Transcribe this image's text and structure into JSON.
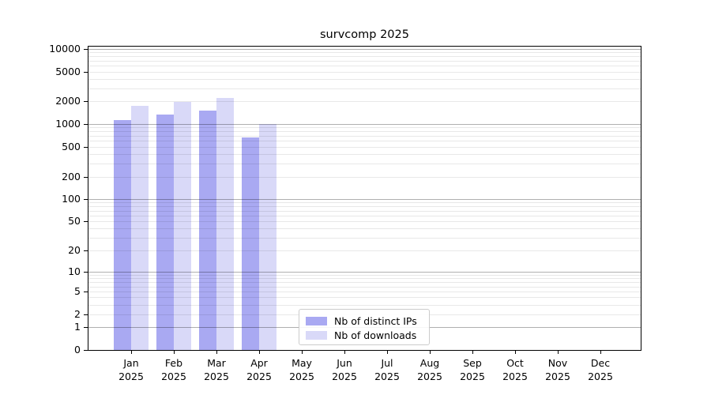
{
  "chart_data": {
    "type": "bar",
    "title": "survcomp 2025",
    "categories": [
      "Jan 2025",
      "Feb 2025",
      "Mar 2025",
      "Apr 2025",
      "May 2025",
      "Jun 2025",
      "Jul 2025",
      "Aug 2025",
      "Sep 2025",
      "Oct 2025",
      "Nov 2025",
      "Dec 2025"
    ],
    "x_tick_months": [
      "Jan",
      "Feb",
      "Mar",
      "Apr",
      "May",
      "Jun",
      "Jul",
      "Aug",
      "Sep",
      "Oct",
      "Nov",
      "Dec"
    ],
    "x_tick_year": "2025",
    "series": [
      {
        "name": "Nb of distinct IPs",
        "color": "#a9a9f2",
        "values": [
          1120,
          1350,
          1510,
          670,
          0,
          0,
          0,
          0,
          0,
          0,
          0,
          0
        ]
      },
      {
        "name": "Nb of downloads",
        "color": "#d9d9f8",
        "values": [
          1760,
          1970,
          2240,
          1010,
          0,
          0,
          0,
          0,
          0,
          0,
          0,
          0
        ]
      }
    ],
    "yscale": "log10(1+x)",
    "y_ticks": [
      0,
      1,
      2,
      5,
      10,
      20,
      50,
      100,
      200,
      500,
      1000,
      2000,
      5000,
      10000
    ],
    "ylim": [
      0,
      10700
    ],
    "xlabel": "",
    "ylabel": "",
    "grid": "on, drawn above bars; major lines at powers of 10, faint minor lines at 2-9 per decade",
    "legend_position": "lower center inside plot"
  },
  "legend": {
    "entries": [
      {
        "label": "Nb of distinct IPs",
        "color": "#a9a9f2"
      },
      {
        "label": "Nb of downloads",
        "color": "#d9d9f8"
      }
    ]
  },
  "colors": {
    "bar_dark": "#a9a9f2",
    "bar_light": "#d9d9f8",
    "grid_major": "#b0b0b0",
    "grid_minor": "#e8e8e8",
    "spine": "#000000",
    "text": "#000000",
    "background": "#ffffff"
  }
}
